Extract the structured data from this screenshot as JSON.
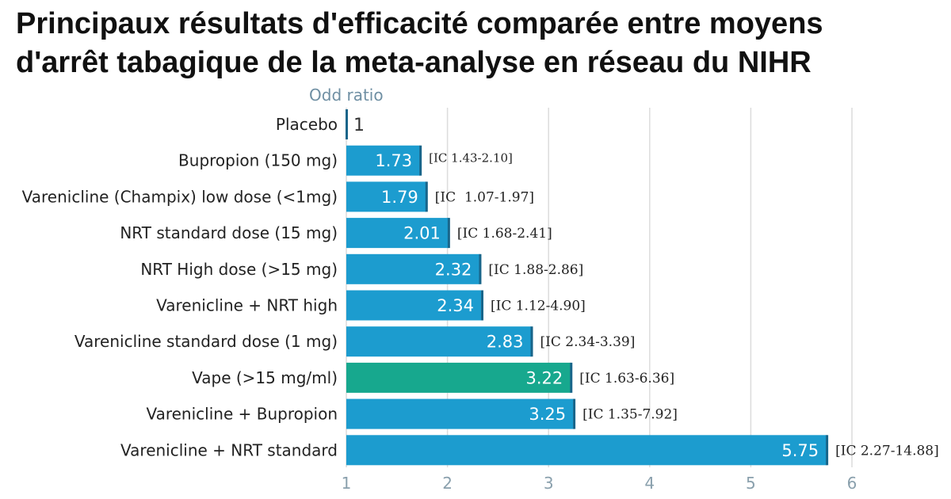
{
  "chart_data": {
    "type": "bar",
    "orientation": "horizontal",
    "title_lines": [
      "Principaux résultats d'efficacité comparée entre moyens",
      "d'arrêt tabagique de la meta-analyse en réseau du NIHR"
    ],
    "axis_label": "Odd ratio",
    "xlim": [
      1,
      6.3
    ],
    "ticks": [
      1,
      2,
      3,
      4,
      5,
      6
    ],
    "grid": true,
    "categories": [
      "Placebo",
      "Bupropion (150 mg)",
      "Varenicline (Champix) low dose (<1mg)",
      "NRT standard dose (15 mg)",
      "NRT High dose (>15 mg)",
      "Varenicline + NRT high",
      "Varenicline standard dose (1 mg)",
      "Vape (>15 mg/ml)",
      "Varenicline + Bupropion",
      "Varenicline + NRT standard"
    ],
    "values": [
      1,
      1.73,
      1.79,
      2.01,
      2.32,
      2.34,
      2.83,
      3.22,
      3.25,
      5.75
    ],
    "value_labels": [
      "1",
      "1.73",
      "1.79",
      "2.01",
      "2.32",
      "2.34",
      "2.83",
      "3.22",
      "3.25",
      "5.75"
    ],
    "ci_labels": [
      "",
      "[IC 1.43-2.10]",
      "[IC  1.07-1.97]",
      "[IC 1.68-2.41]",
      "[IC 1.88-2.86]",
      "[IC 1.12-4.90]",
      "[IC 2.34-3.39]",
      "[IC 1.63-6.36]",
      "[IC 1.35-7.92]",
      "[IC 2.27-14.88]"
    ],
    "highlight_index": 7,
    "colors": {
      "bar": "#1c9ccf",
      "highlight": "#17a88e",
      "bar_edge": "#18658a",
      "grid": "#dcdcdc",
      "tick": "#8aa0ad",
      "axis_label": "#6f8fa3",
      "value_inside": "#ffffff",
      "value_outside": "#333333",
      "text": "#222222"
    }
  }
}
